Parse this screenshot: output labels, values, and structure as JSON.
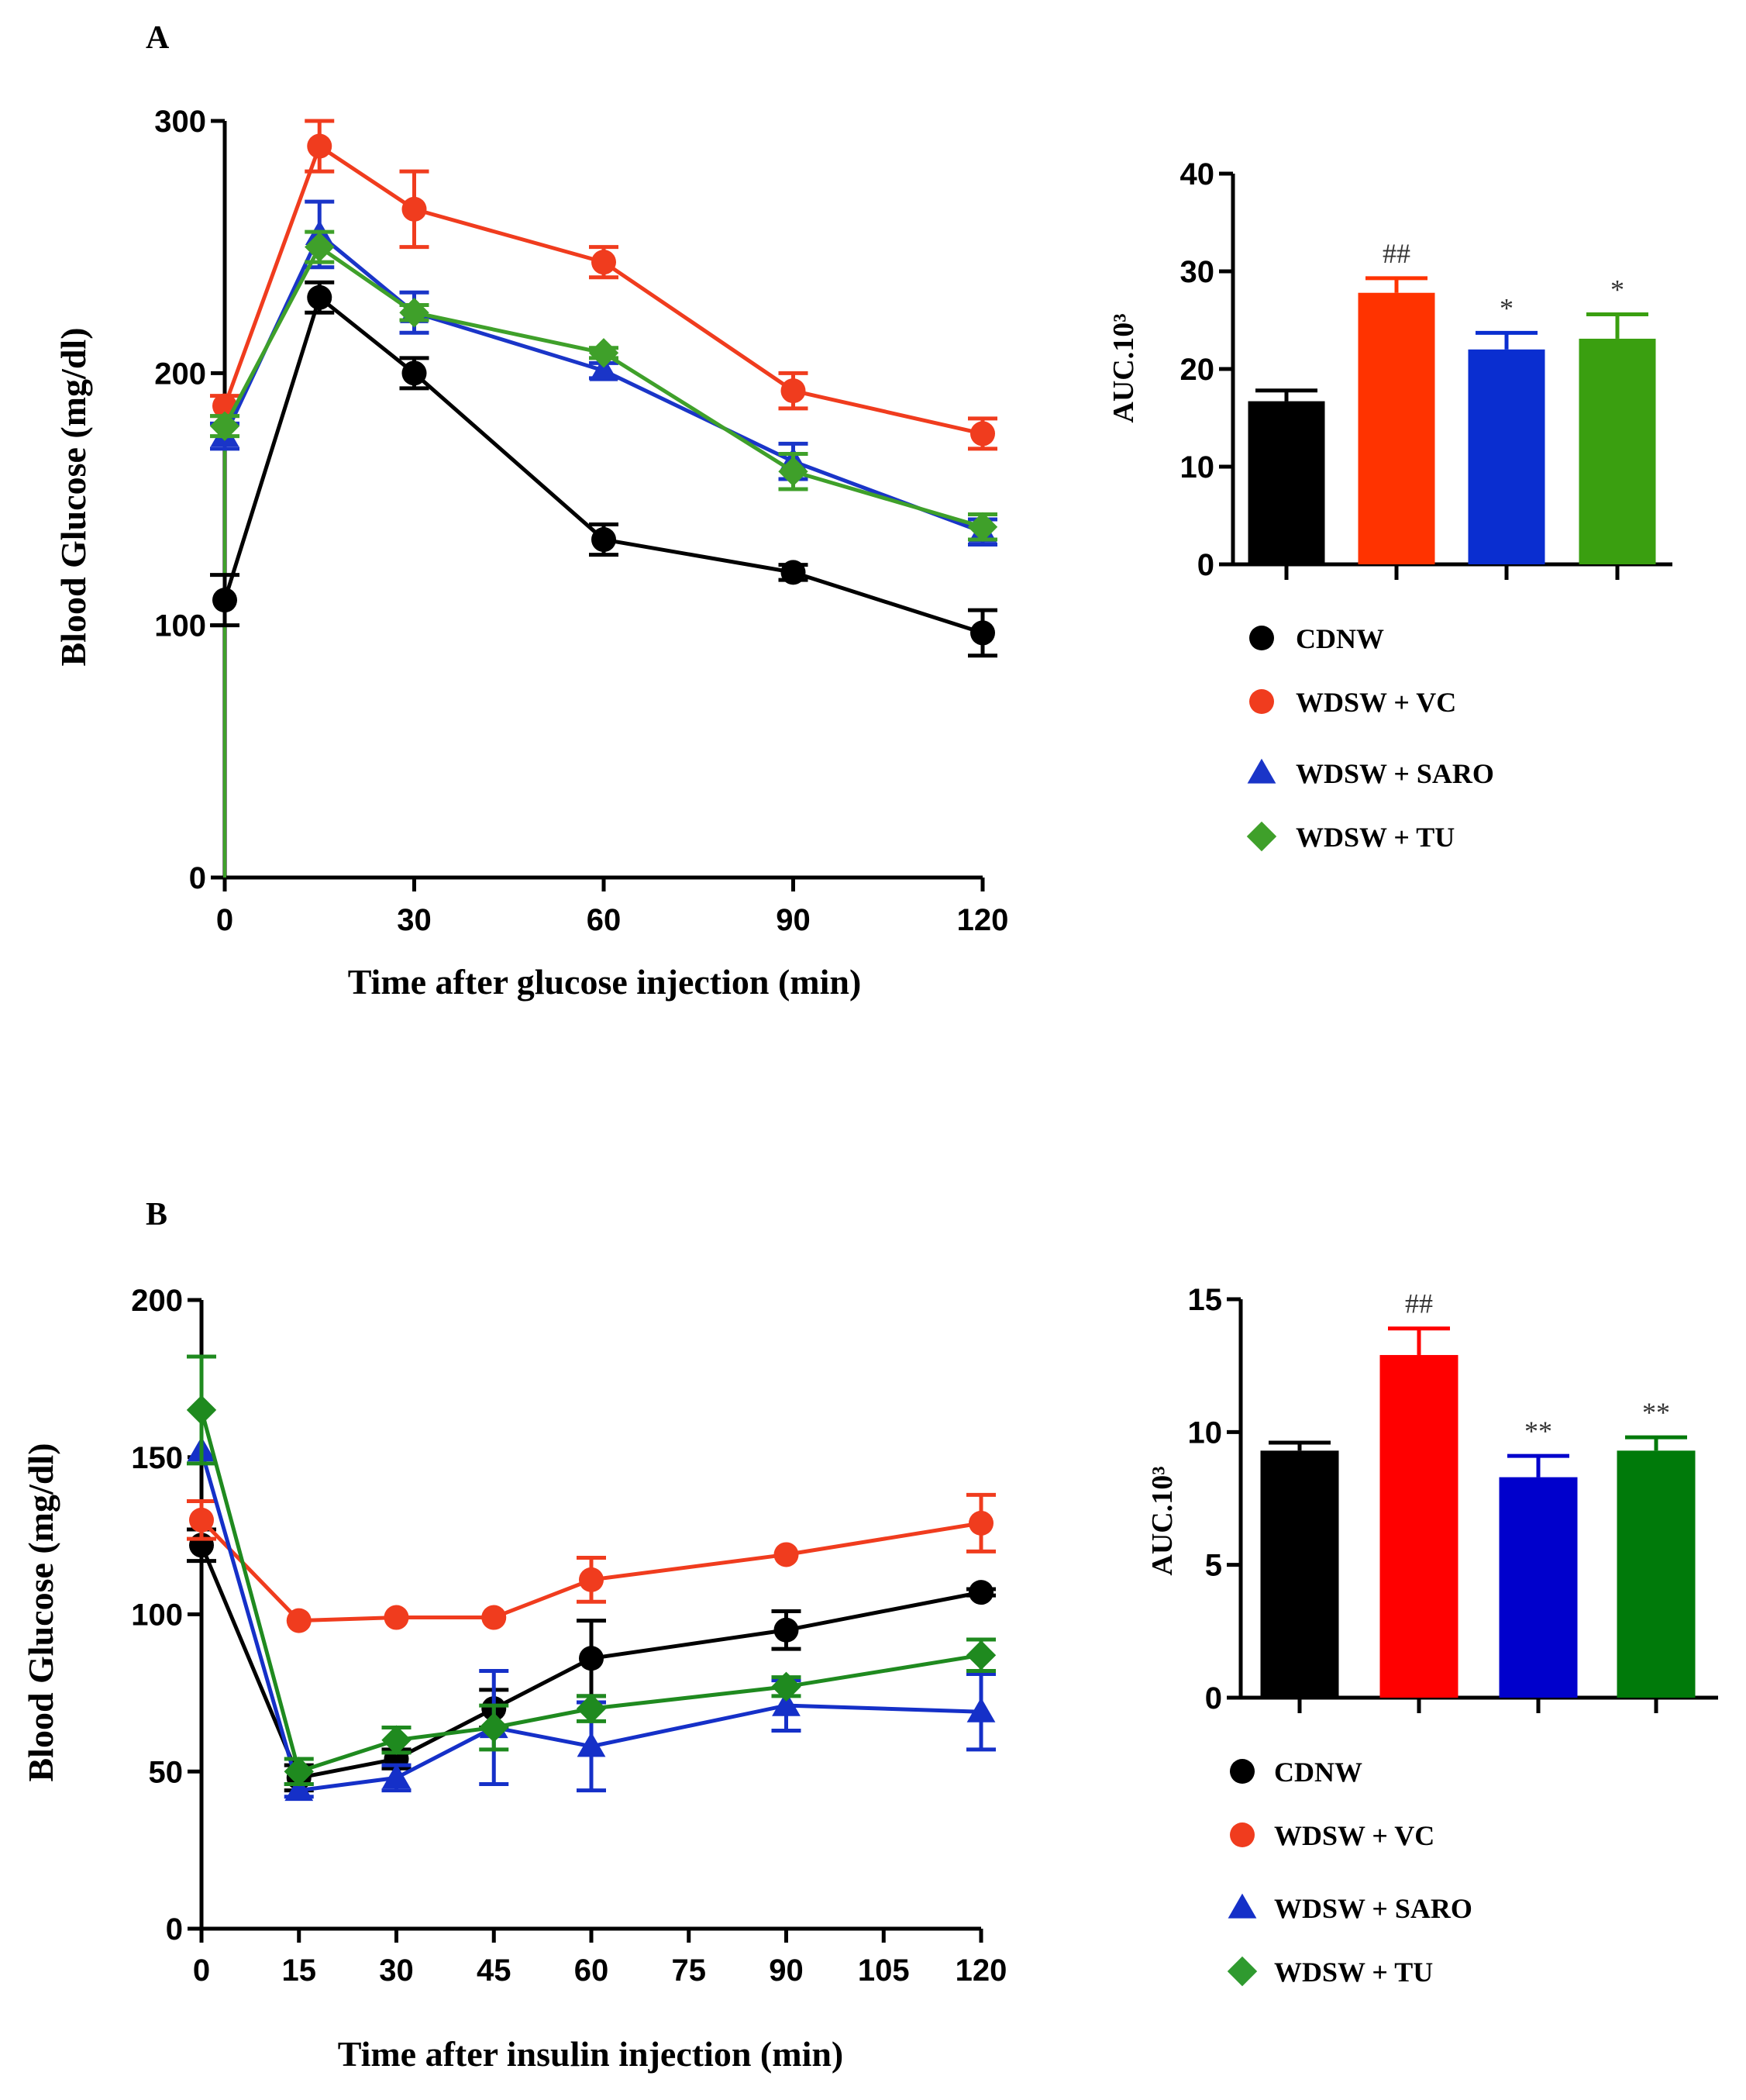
{
  "chart_data": [
    {
      "type": "line",
      "panel": "A",
      "xlabel": "Time after glucose injection (min)",
      "ylabel": "Blood Glucose (mg/dl)",
      "xlim": [
        0,
        120
      ],
      "ylim": [
        0,
        300
      ],
      "xticks": [
        "0",
        "30",
        "60",
        "90",
        "120"
      ],
      "xtick_values": [
        0,
        30,
        60,
        90,
        120
      ],
      "yticks": [
        "0",
        "100",
        "200",
        "300"
      ],
      "ytick_values": [
        0,
        100,
        200,
        300
      ],
      "x": [
        0,
        15,
        30,
        60,
        90,
        120
      ],
      "series": [
        {
          "name": "CDNW",
          "color": "#000000",
          "marker": "circle",
          "values": [
            110,
            230,
            200,
            134,
            121,
            97
          ],
          "errors": [
            10,
            6,
            6,
            6,
            3,
            9
          ]
        },
        {
          "name": "WDSW + VC",
          "color": "#f03c1e",
          "marker": "circle",
          "values": [
            187,
            290,
            265,
            244,
            193,
            176
          ],
          "errors": [
            4,
            10,
            15,
            6,
            7,
            6
          ]
        },
        {
          "name": "WDSW + SARO",
          "color": "#1a35c8",
          "marker": "triangle",
          "values": [
            175,
            255,
            224,
            201,
            165,
            137
          ],
          "errors": [
            5,
            13,
            8,
            3,
            7,
            5
          ]
        },
        {
          "name": "WDSW + TU",
          "color": "#3fa02a",
          "marker": "diamond",
          "values": [
            179,
            250,
            224,
            208,
            161,
            139
          ],
          "errors": [
            4,
            6,
            3,
            2,
            7,
            5
          ]
        }
      ]
    },
    {
      "type": "bar",
      "panel": "A",
      "ylabel": "AUC.10³",
      "ylim": [
        0,
        40
      ],
      "yticks": [
        "0",
        "10",
        "20",
        "30",
        "40"
      ],
      "ytick_values": [
        0,
        10,
        20,
        30,
        40
      ],
      "categories": [
        "CDNW",
        "WDSW + VC",
        "WDSW + SARO",
        "WDSW + TU"
      ],
      "values": [
        16.7,
        27.8,
        22.0,
        23.1
      ],
      "errors": [
        1.1,
        1.5,
        1.7,
        2.5
      ],
      "colors": [
        "#000000",
        "#ff3300",
        "#0a2ed0",
        "#3a9f10"
      ],
      "annotations": [
        "",
        "##",
        "*",
        "*"
      ],
      "legend": [
        {
          "label": "CDNW",
          "marker": "circle",
          "color": "#000000"
        },
        {
          "label": "WDSW + VC",
          "marker": "circle",
          "color": "#f03c1e"
        },
        {
          "label": "WDSW + SARO",
          "marker": "triangle",
          "color": "#1a35c8"
        },
        {
          "label": "WDSW + TU",
          "marker": "diamond",
          "color": "#3fa02a"
        }
      ]
    },
    {
      "type": "line",
      "panel": "B",
      "xlabel": "Time after insulin injection (min)",
      "ylabel": "Blood Glucose (mg/dl)",
      "xlim": [
        0,
        120
      ],
      "ylim": [
        0,
        200
      ],
      "xticks": [
        "0",
        "15",
        "30",
        "45",
        "60",
        "75",
        "90",
        "105",
        "120"
      ],
      "xtick_values": [
        0,
        15,
        30,
        45,
        60,
        75,
        90,
        105,
        120
      ],
      "yticks": [
        "0",
        "50",
        "100",
        "150",
        "200"
      ],
      "ytick_values": [
        0,
        50,
        100,
        150,
        200
      ],
      "x": [
        0,
        15,
        30,
        45,
        60,
        90,
        120
      ],
      "series": [
        {
          "name": "CDNW",
          "color": "#000000",
          "marker": "circle",
          "values": [
            122,
            48,
            54,
            70,
            86,
            95,
            107
          ],
          "errors": [
            5,
            4,
            3,
            6,
            12,
            6,
            1
          ]
        },
        {
          "name": "WDSW + VC",
          "color": "#f03c1e",
          "marker": "circle",
          "values": [
            130,
            98,
            99,
            99,
            111,
            119,
            129
          ],
          "errors": [
            6,
            0,
            0,
            0,
            7,
            0,
            9
          ]
        },
        {
          "name": "WDSW + SARO",
          "color": "#1530c8",
          "marker": "triangle",
          "values": [
            152,
            44,
            48,
            64,
            58,
            71,
            69
          ],
          "errors": [
            0,
            2,
            4,
            18,
            14,
            8,
            12
          ]
        },
        {
          "name": "WDSW + TU",
          "color": "#1f8a1f",
          "marker": "diamond",
          "values": [
            165,
            50,
            60,
            64,
            70,
            77,
            87
          ],
          "errors": [
            17,
            4,
            4,
            7,
            4,
            3,
            5
          ]
        }
      ]
    },
    {
      "type": "bar",
      "panel": "B",
      "ylabel": "AUC.10³",
      "ylim": [
        0,
        15
      ],
      "yticks": [
        "0",
        "5",
        "10",
        "15"
      ],
      "ytick_values": [
        0,
        5,
        10,
        15
      ],
      "categories": [
        "CDNW",
        "WDSW + VC",
        "WDSW + SARO",
        "WDSW + TU"
      ],
      "values": [
        9.3,
        12.9,
        8.3,
        9.3
      ],
      "errors": [
        0.3,
        1.0,
        0.8,
        0.5
      ],
      "colors": [
        "#000000",
        "#ff0000",
        "#0000cc",
        "#007a0a"
      ],
      "annotations": [
        "",
        "##",
        "**",
        "**"
      ],
      "legend": [
        {
          "label": "CDNW",
          "marker": "circle",
          "color": "#000000"
        },
        {
          "label": "WDSW + VC",
          "marker": "circle",
          "color": "#f03c1e"
        },
        {
          "label": "WDSW + SARO",
          "marker": "triangle",
          "color": "#1530c8"
        },
        {
          "label": "WDSW + TU",
          "marker": "diamond",
          "color": "#2f9a2f"
        }
      ]
    }
  ]
}
